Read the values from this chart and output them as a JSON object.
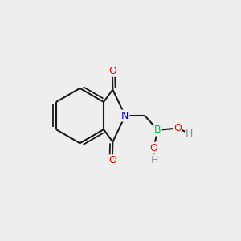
{
  "background_color": "#eeeeee",
  "bond_color": "#1a1a1a",
  "atom_colors": {
    "O": "#ff0000",
    "N": "#0000ee",
    "B": "#00bb44",
    "H": "#888888"
  },
  "figsize": [
    3.0,
    3.0
  ],
  "dpi": 100
}
